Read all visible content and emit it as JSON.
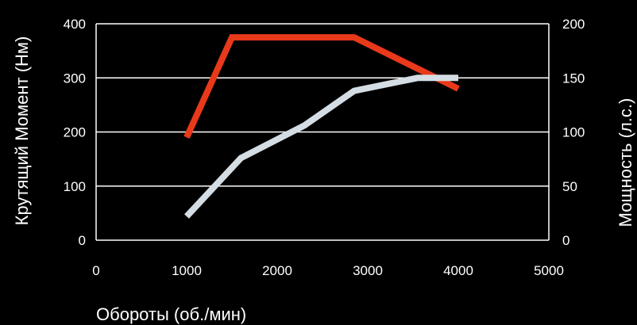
{
  "chart_data": {
    "type": "line",
    "xlabel": "Обороты (об./мин)",
    "ylabel_left": "Крутящий Момент (Нм)",
    "ylabel_right": "Мощность (л.с.)",
    "xlim": [
      0,
      5000
    ],
    "ylim_left": [
      0,
      400
    ],
    "ylim_right": [
      0,
      200
    ],
    "x_ticks": [
      "0",
      "1000",
      "2000",
      "3000",
      "4000",
      "5000"
    ],
    "y_left_ticks": [
      "0",
      "100",
      "200",
      "300",
      "400"
    ],
    "y_right_ticks": [
      "0",
      "50",
      "100",
      "150",
      "200"
    ],
    "grid": true,
    "series": [
      {
        "axis": "left",
        "color": "#e8391a",
        "points": [
          [
            1000,
            190
          ],
          [
            1500,
            375
          ],
          [
            2850,
            375
          ],
          [
            4000,
            280
          ]
        ]
      },
      {
        "axis": "right",
        "color": "#d4dde3",
        "points": [
          [
            1000,
            22
          ],
          [
            1600,
            76
          ],
          [
            2300,
            106
          ],
          [
            2850,
            138
          ],
          [
            3550,
            150
          ],
          [
            4000,
            150
          ]
        ]
      }
    ]
  }
}
